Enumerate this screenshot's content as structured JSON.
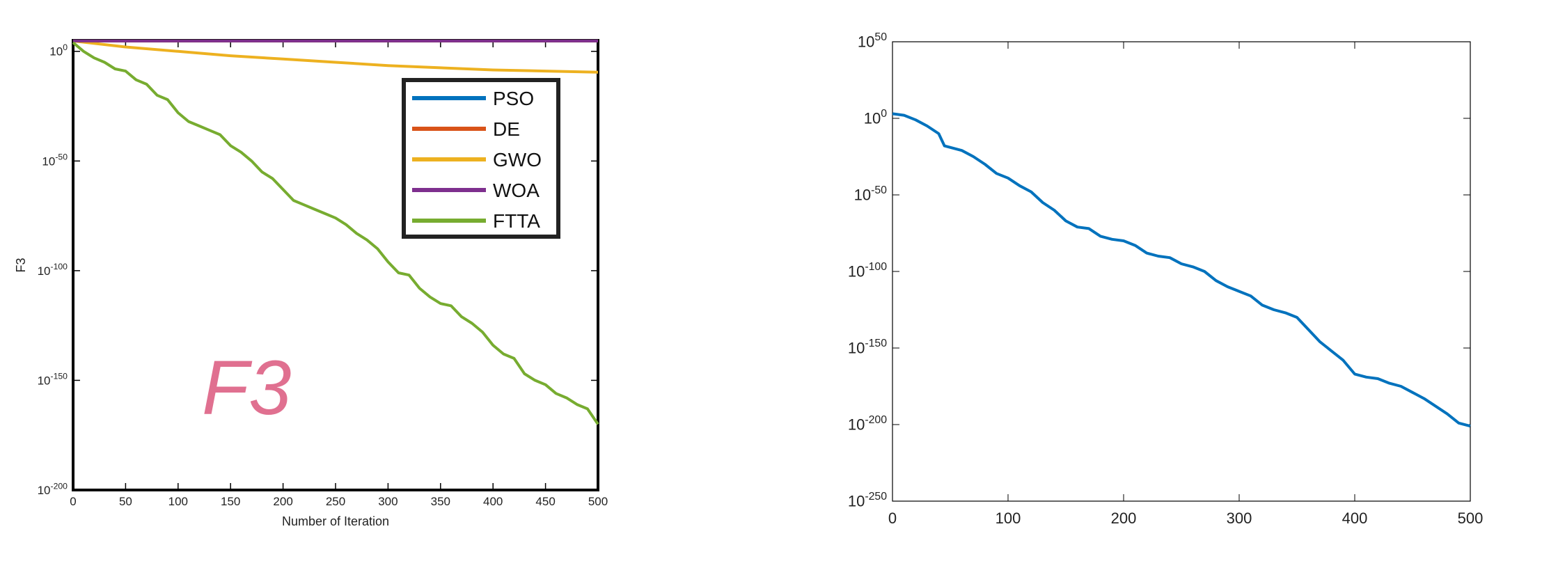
{
  "chart_data": [
    {
      "type": "line",
      "title": "",
      "xlabel": "Number of Iteration",
      "ylabel": "F3",
      "annotation": "F3",
      "y_scale": "log",
      "xlim": [
        0,
        500
      ],
      "ylim_exp": [
        -200,
        5
      ],
      "x_ticks": [
        "0",
        "50",
        "100",
        "150",
        "200",
        "250",
        "300",
        "350",
        "400",
        "450",
        "500"
      ],
      "y_ticks": [
        {
          "base": "10",
          "exp": "0",
          "value": 0
        },
        {
          "base": "10",
          "exp": "-50",
          "value": -50
        },
        {
          "base": "10",
          "exp": "-100",
          "value": -100
        },
        {
          "base": "10",
          "exp": "-150",
          "value": -150
        },
        {
          "base": "10",
          "exp": "-200",
          "value": -200
        }
      ],
      "legend_position": "top-right",
      "series": [
        {
          "name": "PSO",
          "color": "#0072BD",
          "x": [
            0,
            500
          ],
          "y_exp": [
            5,
            5
          ]
        },
        {
          "name": "DE",
          "color": "#D95319",
          "x": [
            0,
            500
          ],
          "y_exp": [
            5,
            5
          ]
        },
        {
          "name": "GWO",
          "color": "#EDB120",
          "x": [
            0,
            50,
            100,
            150,
            200,
            250,
            300,
            350,
            400,
            450,
            500
          ],
          "y_exp": [
            5,
            2,
            0,
            -2,
            -3.5,
            -5,
            -6.5,
            -7.5,
            -8.5,
            -9,
            -9.5
          ]
        },
        {
          "name": "WOA",
          "color": "#7E2F8E",
          "x": [
            0,
            500
          ],
          "y_exp": [
            5.2,
            5.2
          ]
        },
        {
          "name": "FTTA",
          "color": "#77AC30",
          "x": [
            0,
            10,
            20,
            30,
            40,
            50,
            60,
            70,
            80,
            90,
            100,
            110,
            120,
            130,
            140,
            150,
            160,
            170,
            180,
            190,
            200,
            210,
            220,
            230,
            240,
            250,
            260,
            270,
            280,
            290,
            300,
            310,
            320,
            330,
            340,
            350,
            360,
            370,
            380,
            390,
            400,
            410,
            420,
            430,
            440,
            450,
            460,
            470,
            480,
            490,
            500
          ],
          "y_exp": [
            4,
            0,
            -3,
            -5,
            -8,
            -9,
            -13,
            -15,
            -20,
            -22,
            -28,
            -32,
            -34,
            -36,
            -38,
            -43,
            -46,
            -50,
            -55,
            -58,
            -63,
            -68,
            -70,
            -72,
            -74,
            -76,
            -79,
            -83,
            -86,
            -90,
            -96,
            -101,
            -102,
            -108,
            -112,
            -115,
            -116,
            -121,
            -124,
            -128,
            -134,
            -138,
            -140,
            -147,
            -150,
            -152,
            -156,
            -158,
            -161,
            -163,
            -170
          ]
        }
      ]
    },
    {
      "type": "line",
      "title": "",
      "xlabel": "",
      "ylabel": "",
      "y_scale": "log",
      "xlim": [
        0,
        500
      ],
      "ylim_exp": [
        -250,
        50
      ],
      "x_ticks": [
        "0",
        "100",
        "200",
        "300",
        "400",
        "500"
      ],
      "y_ticks": [
        {
          "base": "10",
          "exp": "50",
          "value": 50
        },
        {
          "base": "10",
          "exp": "0",
          "value": 0
        },
        {
          "base": "10",
          "exp": "-50",
          "value": -50
        },
        {
          "base": "10",
          "exp": "-100",
          "value": -100
        },
        {
          "base": "10",
          "exp": "-150",
          "value": -150
        },
        {
          "base": "10",
          "exp": "-200",
          "value": -200
        },
        {
          "base": "10",
          "exp": "-250",
          "value": -250
        }
      ],
      "series": [
        {
          "color": "#0072BD",
          "x": [
            0,
            10,
            20,
            30,
            40,
            45,
            60,
            70,
            80,
            90,
            100,
            110,
            120,
            130,
            140,
            150,
            160,
            170,
            180,
            190,
            200,
            210,
            220,
            230,
            240,
            250,
            260,
            270,
            280,
            290,
            300,
            310,
            320,
            330,
            340,
            350,
            360,
            370,
            380,
            390,
            400,
            410,
            420,
            430,
            440,
            450,
            460,
            470,
            480,
            490,
            500
          ],
          "y_exp": [
            3,
            2,
            -1,
            -5,
            -10,
            -18,
            -21,
            -25,
            -30,
            -36,
            -39,
            -44,
            -48,
            -55,
            -60,
            -67,
            -71,
            -72,
            -77,
            -79,
            -80,
            -83,
            -88,
            -90,
            -91,
            -95,
            -97,
            -100,
            -106,
            -110,
            -113,
            -116,
            -122,
            -125,
            -127,
            -130,
            -138,
            -146,
            -152,
            -158,
            -167,
            -169,
            -170,
            -173,
            -175,
            -179,
            -183,
            -188,
            -193,
            -199,
            -201
          ]
        }
      ]
    }
  ]
}
